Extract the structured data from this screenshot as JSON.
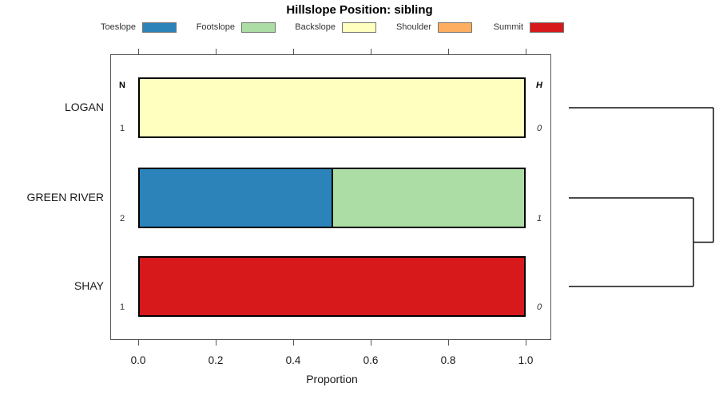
{
  "chart_data": {
    "type": "bar",
    "subtype": "horizontal-stacked-proportion",
    "title": "Hillslope Position: sibling",
    "xlabel": "Proportion",
    "xlim": [
      0,
      1
    ],
    "xtick_values": [
      0,
      0.2,
      0.4,
      0.6,
      0.8,
      1.0
    ],
    "xtick_labels": [
      "0.0",
      "0.2",
      "0.4",
      "0.6",
      "0.8",
      "1.0"
    ],
    "grid": false,
    "legend_position": "top",
    "legend": [
      {
        "label": "Toeslope",
        "color": "#2B83BA"
      },
      {
        "label": "Footslope",
        "color": "#ABDDA4"
      },
      {
        "label": "Backslope",
        "color": "#FFFFBF"
      },
      {
        "label": "Shoulder",
        "color": "#FDAE61"
      },
      {
        "label": "Summit",
        "color": "#D7191C"
      }
    ],
    "annotation_columns": {
      "left_header": "N",
      "right_header": "H"
    },
    "rows": [
      {
        "label": "LOGAN",
        "n": "1",
        "h": "0",
        "segments": [
          {
            "category": "Backslope",
            "value": 1.0
          }
        ]
      },
      {
        "label": "GREEN RIVER",
        "n": "2",
        "h": "1",
        "segments": [
          {
            "category": "Toeslope",
            "value": 0.5
          },
          {
            "category": "Footslope",
            "value": 0.5
          }
        ]
      },
      {
        "label": "SHAY",
        "n": "1",
        "h": "0",
        "segments": [
          {
            "category": "Summit",
            "value": 1.0
          }
        ]
      }
    ],
    "dendrogram": {
      "orientation": "right",
      "leaf_order": [
        "LOGAN",
        "GREEN RIVER",
        "SHAY"
      ],
      "merges": [
        {
          "a": "GREEN RIVER",
          "b": "SHAY",
          "height": 0.862
        },
        {
          "a": "merge-0",
          "b": "LOGAN",
          "height": 1.0
        }
      ]
    }
  },
  "colors": {
    "axis": "#555555",
    "text": "#1a1a1a",
    "bar_border": "#000000",
    "dendrogram_line": "#111111",
    "legend_swatch_border": "#737373",
    "background": "#ffffff"
  }
}
